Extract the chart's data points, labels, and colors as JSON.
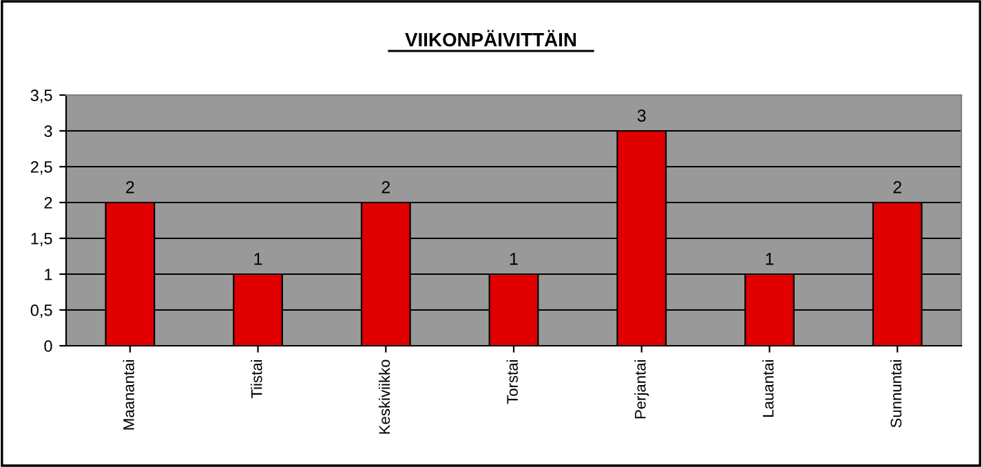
{
  "chart_data": {
    "type": "bar",
    "title": "VIIKONPÄIVITTÄIN",
    "categories": [
      "Maanantai",
      "Tiistai",
      "Keskiviikko",
      "Torstai",
      "Perjantai",
      "Lauantai",
      "Sunnuntai"
    ],
    "values": [
      2,
      1,
      2,
      1,
      3,
      1,
      2
    ],
    "color": "#e00000",
    "ylim": [
      0,
      3.5
    ],
    "yticks": [
      0,
      {
        "value": 0.5,
        "label": "0,5"
      },
      1,
      {
        "value": 1.5,
        "label": "1,5"
      },
      2,
      {
        "value": 2.5,
        "label": "2,5"
      },
      3,
      {
        "value": 3.5,
        "label": "3,5"
      }
    ],
    "grid": "y",
    "data_labels": true
  }
}
